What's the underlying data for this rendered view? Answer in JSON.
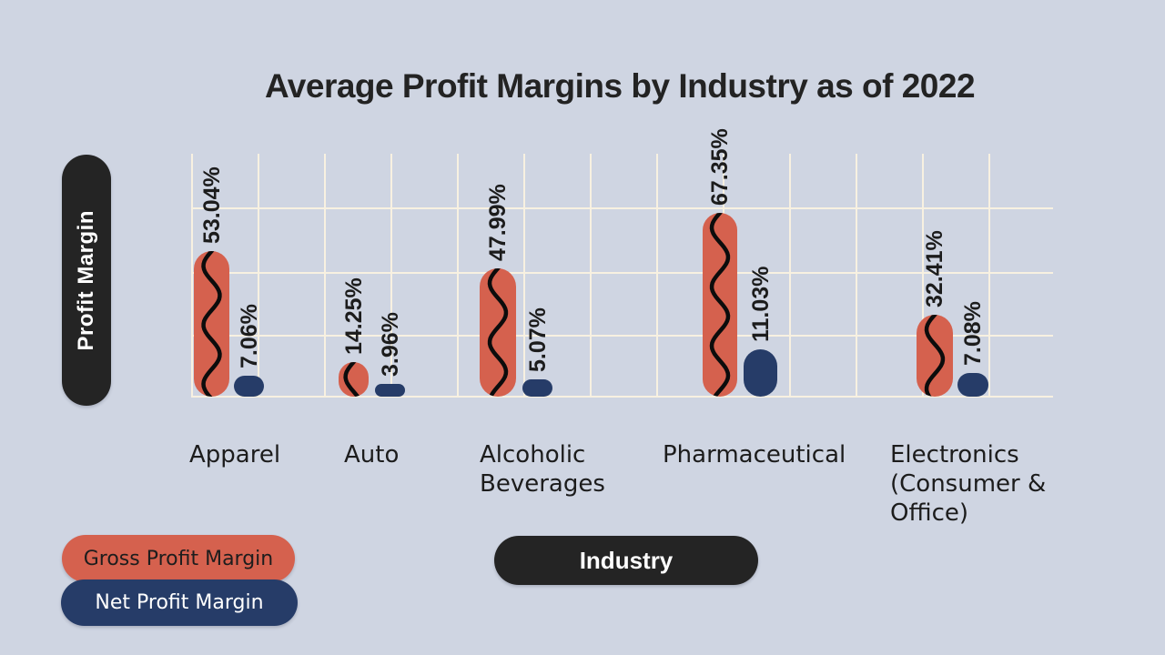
{
  "title": "Average Profit Margins by Industry as of 2022",
  "y_axis": {
    "label": "Profit Margin"
  },
  "x_axis": {
    "label": "Industry"
  },
  "legend": {
    "gross": {
      "label": "Gross Profit Margin",
      "color": "#d5614e"
    },
    "net": {
      "label": "Net Profit Margin",
      "color": "#263c68"
    }
  },
  "colors": {
    "background": "#cfd5e2",
    "grid_line": "#f8f1e1",
    "gross_bar": "#d5614e",
    "net_bar": "#263c68",
    "axis_pill": "#242424",
    "text": "#1c1c1c",
    "squiggle": "#0c0c0c"
  },
  "chart_data": {
    "type": "bar",
    "title": "Average Profit Margins by Industry as of 2022",
    "xlabel": "Industry",
    "ylabel": "Profit Margin",
    "grid": true,
    "legend_position": "bottom-left",
    "categories": [
      "Apparel",
      "Auto",
      "Alcoholic\nBeverages",
      "Pharmaceutical",
      "Electronics\n(Consumer &\nOffice)"
    ],
    "series": [
      {
        "name": "Gross Profit Margin",
        "color": "#d5614e",
        "values": [
          53.04,
          14.25,
          47.99,
          67.35,
          32.41
        ],
        "value_labels": [
          "53.04%",
          "14.25%",
          "47.99%",
          "67.35%",
          "32.41%"
        ]
      },
      {
        "name": "Net Profit Margin",
        "color": "#263c68",
        "values": [
          7.06,
          3.96,
          5.07,
          11.03,
          7.08
        ],
        "value_labels": [
          "7.06%",
          "3.96%",
          "5.07%",
          "11.03%",
          "7.08%"
        ]
      }
    ]
  }
}
